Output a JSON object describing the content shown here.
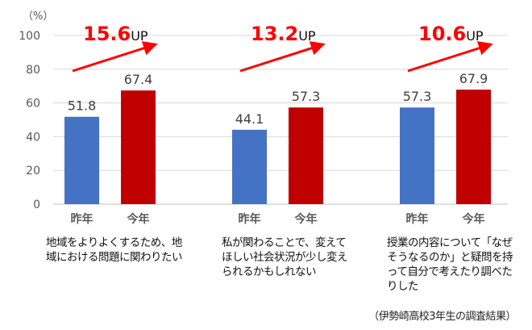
{
  "chart_data": {
    "type": "bar",
    "ylabel": "（%）",
    "ylim": [
      0,
      100
    ],
    "yticks": [
      0,
      20,
      40,
      60,
      80,
      100
    ],
    "grid": true,
    "categories": [
      "昨年",
      "今年"
    ],
    "groups": [
      {
        "values": [
          51.8,
          67.4
        ],
        "increase": "15.6",
        "increase_suffix": "UP",
        "description": "地域をよりよくするため、地域における問題に関わりたい"
      },
      {
        "values": [
          44.1,
          57.3
        ],
        "increase": "13.2",
        "increase_suffix": "UP",
        "description": "私が関わることで、変えてほしい社会状況が少し変えられるかもしれない"
      },
      {
        "values": [
          57.3,
          67.9
        ],
        "increase": "10.6",
        "increase_suffix": "UP",
        "description": "授業の内容について「なぜそうなるのか」と疑問を持って自分で考えたり調べたりした"
      }
    ],
    "series_colors": [
      "#4472C4",
      "#C00000"
    ],
    "accent_color": "#FF0000",
    "source_note": "（伊勢崎高校3年生の調査結果）"
  }
}
